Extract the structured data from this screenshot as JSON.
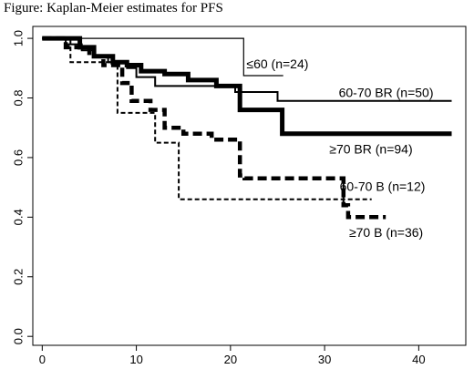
{
  "chart_data": {
    "type": "line",
    "title": "Figure: Kaplan-Meier estimates for PFS",
    "xlabel": "",
    "ylabel": "",
    "xlim": [
      -1,
      45
    ],
    "ylim": [
      -0.03,
      1.04
    ],
    "xticks": [
      0,
      10,
      20,
      30,
      40
    ],
    "yticks": [
      0.0,
      0.2,
      0.4,
      0.6,
      0.8,
      1.0
    ],
    "xtick_labels": [
      "0",
      "10",
      "20",
      "30",
      "40"
    ],
    "ytick_labels": [
      "0.0",
      "0.2",
      "0.4",
      "0.6",
      "0.8",
      "1.0"
    ],
    "grid": false,
    "series": [
      {
        "name": "≤60 (n=24)",
        "color": "#000000",
        "style": "solid-thin",
        "x": [
          0,
          21.4,
          21.4,
          25.6
        ],
        "y": [
          1.0,
          1.0,
          0.875,
          0.875
        ]
      },
      {
        "name": "60-70 BR (n=50)",
        "color": "#000000",
        "style": "solid-medium",
        "x": [
          0,
          2.5,
          2.5,
          4.2,
          4.2,
          5.5,
          5.5,
          7.0,
          7.0,
          9.0,
          9.0,
          10.0,
          10.0,
          12.0,
          12.0,
          20.5,
          20.5,
          25.0,
          25.0,
          43.5
        ],
        "y": [
          1.0,
          1.0,
          0.98,
          0.98,
          0.96,
          0.96,
          0.94,
          0.94,
          0.92,
          0.92,
          0.9,
          0.9,
          0.87,
          0.87,
          0.84,
          0.84,
          0.82,
          0.82,
          0.79,
          0.79
        ]
      },
      {
        "name": "≥70 BR (n=94)",
        "color": "#000000",
        "style": "solid-thick",
        "x": [
          0,
          4.0,
          4.0,
          5.5,
          5.5,
          7.5,
          7.5,
          9.0,
          9.0,
          10.5,
          10.5,
          13.0,
          13.0,
          15.5,
          15.5,
          18.5,
          18.5,
          21.0,
          21.0,
          25.5,
          25.5,
          43.5
        ],
        "y": [
          1.0,
          1.0,
          0.97,
          0.97,
          0.94,
          0.94,
          0.92,
          0.92,
          0.91,
          0.91,
          0.89,
          0.89,
          0.88,
          0.88,
          0.86,
          0.86,
          0.84,
          0.84,
          0.76,
          0.76,
          0.68,
          0.68
        ]
      },
      {
        "name": "60-70 B (n=12)",
        "color": "#000000",
        "style": "dashed-thin",
        "x": [
          0,
          3.0,
          3.0,
          4.5,
          4.5,
          8.0,
          8.0,
          12.0,
          12.0,
          14.5,
          14.5,
          32.0,
          32.0,
          35.0
        ],
        "y": [
          1.0,
          1.0,
          0.92,
          0.92,
          0.92,
          0.92,
          0.75,
          0.75,
          0.65,
          0.65,
          0.46,
          0.46,
          0.46,
          0.46
        ]
      },
      {
        "name": "≥70 B (n=36)",
        "color": "#000000",
        "style": "dashed-thick",
        "x": [
          0,
          2.5,
          2.5,
          5.0,
          5.0,
          6.5,
          6.5,
          8.5,
          8.5,
          9.5,
          9.5,
          11.5,
          11.5,
          13.0,
          13.0,
          15.0,
          15.0,
          18.0,
          18.0,
          21.0,
          21.0,
          21.5,
          21.5,
          32.0,
          32.0,
          32.5,
          32.5,
          36.5
        ],
        "y": [
          1.0,
          1.0,
          0.97,
          0.97,
          0.94,
          0.94,
          0.91,
          0.91,
          0.85,
          0.85,
          0.79,
          0.79,
          0.76,
          0.76,
          0.7,
          0.7,
          0.68,
          0.68,
          0.66,
          0.66,
          0.54,
          0.54,
          0.53,
          0.53,
          0.44,
          0.44,
          0.4,
          0.4
        ]
      }
    ],
    "annotations": [
      {
        "text": "≤60 (n=24)",
        "x": 21.7,
        "y": 0.91
      },
      {
        "text": "60-70 BR (n=50)",
        "x": 31.5,
        "y": 0.815
      },
      {
        "text": "≥70 BR (n=94)",
        "x": 30.5,
        "y": 0.625
      },
      {
        "text": "60-70 B (n=12)",
        "x": 31.6,
        "y": 0.5
      },
      {
        "text": "≥70 B (n=36)",
        "x": 32.6,
        "y": 0.345
      }
    ],
    "censor_marks": [
      {
        "series": 3,
        "x": 32.0,
        "y_from": 0.44,
        "y_to": 0.52
      }
    ]
  }
}
